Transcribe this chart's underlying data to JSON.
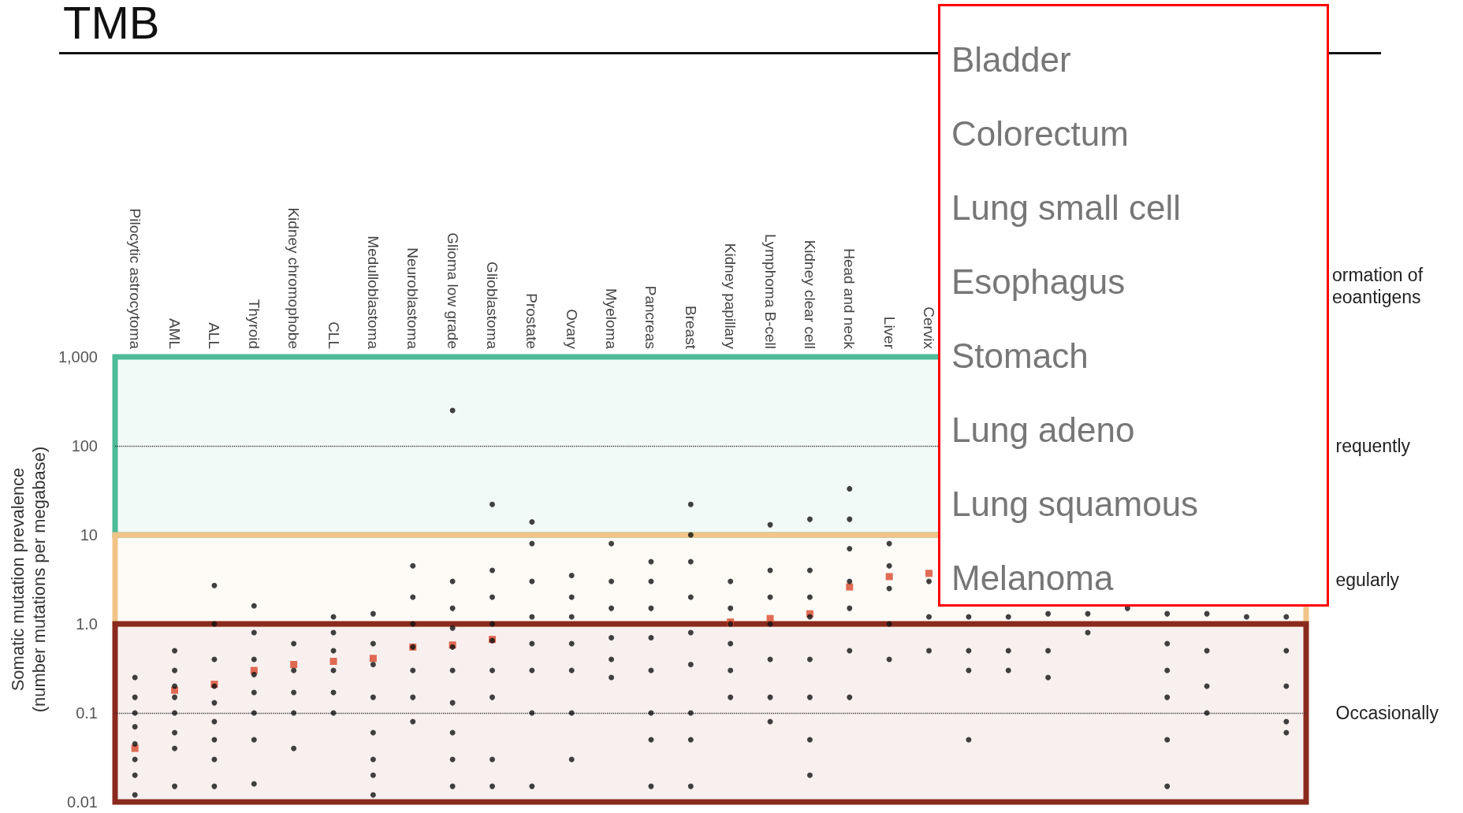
{
  "chart_data": {
    "type": "scatter",
    "title": "TMB",
    "ylabel": "Somatic mutation prevalence\n(number mutations per megabase)",
    "categories": [
      "Pilocytic astrocytoma",
      "AML",
      "ALL",
      "Thyroid",
      "Kidney chromophobe",
      "CLL",
      "Medulloblastoma",
      "Neuroblastoma",
      "Glioma low grade",
      "Glioblastoma",
      "Prostate",
      "Ovary",
      "Myeloma",
      "Pancreas",
      "Breast",
      "Kidney papillary",
      "Lymphoma B-cell",
      "Kidney clear cell",
      "Head and neck",
      "Liver",
      "Cervix",
      null,
      null,
      null,
      null,
      null,
      null,
      null,
      null,
      null
    ],
    "log": "y",
    "ylim": [
      0.01,
      1000
    ],
    "yticks": [
      {
        "value": 0.01,
        "label": "0.01"
      },
      {
        "value": 0.1,
        "label": "0.1"
      },
      {
        "value": 1,
        "label": "1.0"
      },
      10,
      100,
      {
        "value": 1000,
        "label": "1,000"
      }
    ],
    "grid": false,
    "series": [
      {
        "color": "#111111",
        "marker": "circle",
        "values": [
          0.012,
          0.015,
          0.015,
          0.016,
          0.04,
          0.1,
          0.012,
          0.08,
          0.015,
          0.015,
          0.015,
          0.03,
          0.25,
          0.015,
          0.015,
          0.15,
          0.08,
          0.02,
          0.15,
          0.4,
          0.5,
          0.05,
          0.3,
          0.25,
          0.8,
          1.5,
          0.015,
          0.1,
          1.2,
          0.06
        ]
      },
      {
        "color": "#111111",
        "marker": "circle",
        "values": [
          0.02,
          0.04,
          0.03,
          0.05,
          0.1,
          0.17,
          0.02,
          0.15,
          0.03,
          0.03,
          0.1,
          0.1,
          0.4,
          0.05,
          0.05,
          0.3,
          0.15,
          0.05,
          0.5,
          1,
          1.2,
          0.3,
          0.5,
          0.5,
          1.3,
          null,
          0.05,
          0.2,
          null,
          0.08
        ]
      },
      {
        "color": "#111111",
        "marker": "circle",
        "values": [
          0.03,
          0.06,
          0.05,
          0.1,
          0.17,
          0.3,
          0.03,
          0.3,
          0.06,
          0.15,
          0.3,
          0.3,
          0.7,
          0.1,
          0.1,
          0.6,
          0.4,
          0.15,
          1.5,
          2.5,
          3,
          0.5,
          1.2,
          1.3,
          null,
          null,
          0.15,
          0.5,
          null,
          0.2
        ]
      },
      {
        "color": "#111111",
        "marker": "circle",
        "values": [
          0.045,
          0.1,
          0.08,
          0.17,
          0.3,
          0.5,
          0.06,
          0.55,
          0.13,
          0.3,
          0.6,
          0.6,
          1.5,
          0.3,
          0.35,
          1,
          1,
          0.4,
          3,
          4.5,
          null,
          1.2,
          null,
          null,
          null,
          null,
          0.3,
          1.3,
          null,
          0.5
        ]
      },
      {
        "color": "#111111",
        "marker": "circle",
        "values": [
          0.07,
          0.15,
          0.13,
          0.27,
          0.6,
          0.8,
          0.15,
          1,
          0.3,
          0.65,
          1.2,
          1.2,
          3,
          0.7,
          0.8,
          1.5,
          2,
          1.2,
          7,
          8,
          null,
          null,
          null,
          null,
          null,
          null,
          0.6,
          null,
          null,
          1.2
        ]
      },
      {
        "color": "#111111",
        "marker": "circle",
        "values": [
          0.1,
          0.2,
          0.2,
          0.4,
          null,
          1.2,
          0.35,
          2,
          0.55,
          1,
          3,
          2,
          8,
          1.5,
          2,
          3,
          4,
          2,
          15,
          null,
          null,
          null,
          null,
          null,
          null,
          null,
          1.3,
          null,
          null,
          null
        ]
      },
      {
        "color": "#111111",
        "marker": "circle",
        "values": [
          0.15,
          0.3,
          0.4,
          0.8,
          null,
          null,
          0.6,
          4.5,
          0.9,
          2,
          8,
          3.5,
          null,
          3,
          5,
          null,
          13,
          4,
          33,
          null,
          null,
          null,
          null,
          null,
          null,
          null,
          null,
          null,
          null,
          null
        ]
      },
      {
        "color": "#111111",
        "marker": "circle",
        "values": [
          0.25,
          0.5,
          1,
          1.6,
          null,
          null,
          1.3,
          null,
          1.5,
          4,
          14,
          null,
          null,
          5,
          10,
          null,
          null,
          15,
          null,
          null,
          null,
          null,
          null,
          null,
          null,
          null,
          null,
          null,
          null,
          null
        ]
      },
      {
        "color": "#111111",
        "marker": "circle",
        "values": [
          null,
          null,
          2.7,
          null,
          null,
          null,
          null,
          null,
          3,
          22,
          null,
          null,
          null,
          null,
          22,
          null,
          null,
          null,
          null,
          null,
          null,
          null,
          null,
          null,
          null,
          null,
          null,
          null,
          null,
          null
        ]
      },
      {
        "color": "#111111",
        "marker": "circle",
        "values": [
          null,
          null,
          null,
          null,
          null,
          null,
          null,
          null,
          250,
          null,
          null,
          null,
          null,
          null,
          null,
          null,
          null,
          null,
          null,
          null,
          null,
          null,
          null,
          null,
          null,
          null,
          null,
          null,
          null,
          null
        ]
      },
      {
        "color": "#d9472b",
        "marker": "square",
        "values": [
          0.04,
          0.18,
          0.21,
          0.3,
          0.35,
          0.38,
          0.41,
          0.55,
          0.58,
          0.67,
          null,
          null,
          null,
          null,
          null,
          1.05,
          1.15,
          1.3,
          2.6,
          3.4,
          3.7,
          null,
          null,
          null,
          null,
          null,
          null,
          null,
          null,
          null
        ]
      }
    ],
    "ref_lines": [
      {
        "axis": "y",
        "value": 100,
        "line_style": "dotted"
      },
      {
        "axis": "y",
        "value": 0.1,
        "line_style": "dotted"
      }
    ],
    "bands": [
      {
        "axis": "y",
        "from": 10,
        "to": 1000,
        "label": "requently",
        "color": "#4dba98"
      },
      {
        "axis": "y",
        "from": 1,
        "to": 10,
        "label": "egularly",
        "color": "#f0c587"
      },
      {
        "axis": "y",
        "from": 0.01,
        "to": 1,
        "label": "Occasionally",
        "color": "#8a2a1f"
      }
    ],
    "annotations": [
      "ormation of\neoantigens",
      "Bladder",
      "Colorectum",
      "Lung small cell",
      "Esophagus",
      "Stomach",
      "Lung adeno",
      "Lung squamous",
      "Melanoma"
    ]
  }
}
